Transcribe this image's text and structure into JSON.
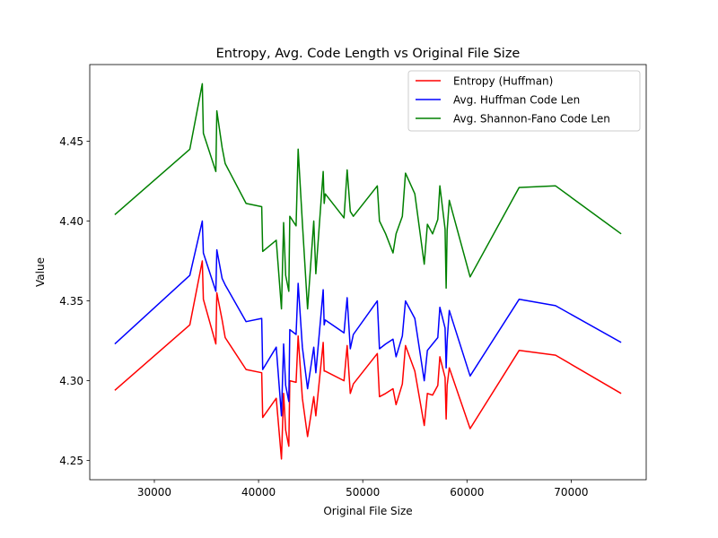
{
  "chart_data": {
    "type": "line",
    "title": "Entropy, Avg. Code Length vs Original File Size",
    "xlabel": "Original File Size",
    "ylabel": "Value",
    "xlim": [
      23800,
      77200
    ],
    "ylim": [
      4.238,
      4.498
    ],
    "xticks": [
      30000,
      40000,
      50000,
      60000,
      70000
    ],
    "xtick_labels": [
      "30000",
      "40000",
      "50000",
      "60000",
      "70000"
    ],
    "yticks": [
      4.25,
      4.3,
      4.35,
      4.4,
      4.45
    ],
    "ytick_labels": [
      "4.25",
      "4.30",
      "4.35",
      "4.40",
      "4.45"
    ],
    "grid": false,
    "legend_position": "top-right",
    "x": [
      26200,
      33400,
      34600,
      34700,
      35900,
      36000,
      36500,
      36800,
      38800,
      40300,
      40400,
      41700,
      42200,
      42400,
      42600,
      42900,
      43000,
      43600,
      43800,
      44200,
      44700,
      45300,
      45500,
      46200,
      46300,
      46400,
      48200,
      48500,
      48800,
      49100,
      51400,
      51600,
      52200,
      52900,
      53200,
      53800,
      54100,
      55000,
      55900,
      56200,
      56700,
      57200,
      57400,
      57900,
      58000,
      58100,
      58300,
      60300,
      65000,
      68500,
      74800
    ],
    "series": [
      {
        "name": "Entropy (Huffman)",
        "color": "#ff0000",
        "values": [
          4.294,
          4.335,
          4.375,
          4.351,
          4.323,
          4.355,
          4.338,
          4.327,
          4.307,
          4.305,
          4.277,
          4.289,
          4.251,
          4.292,
          4.269,
          4.259,
          4.3,
          4.299,
          4.328,
          4.289,
          4.265,
          4.29,
          4.278,
          4.324,
          4.306,
          4.306,
          4.3,
          4.322,
          4.292,
          4.298,
          4.317,
          4.29,
          4.292,
          4.295,
          4.285,
          4.298,
          4.322,
          4.306,
          4.272,
          4.292,
          4.291,
          4.297,
          4.315,
          4.302,
          4.276,
          4.297,
          4.308,
          4.27,
          4.319,
          4.316,
          4.292
        ]
      },
      {
        "name": "Avg. Huffman Code Len",
        "color": "#0000ff",
        "values": [
          4.323,
          4.366,
          4.4,
          4.38,
          4.356,
          4.382,
          4.364,
          4.36,
          4.337,
          4.339,
          4.307,
          4.321,
          4.278,
          4.323,
          4.297,
          4.287,
          4.332,
          4.329,
          4.361,
          4.321,
          4.295,
          4.321,
          4.305,
          4.357,
          4.335,
          4.338,
          4.33,
          4.352,
          4.32,
          4.329,
          4.35,
          4.32,
          4.323,
          4.326,
          4.315,
          4.328,
          4.35,
          4.339,
          4.3,
          4.319,
          4.323,
          4.327,
          4.346,
          4.333,
          4.308,
          4.325,
          4.344,
          4.303,
          4.351,
          4.347,
          4.324
        ]
      },
      {
        "name": "Avg. Shannon-Fano Code Len",
        "color": "#008000",
        "values": [
          4.404,
          4.445,
          4.486,
          4.455,
          4.431,
          4.469,
          4.446,
          4.436,
          4.411,
          4.409,
          4.381,
          4.388,
          4.345,
          4.399,
          4.366,
          4.356,
          4.403,
          4.397,
          4.445,
          4.399,
          4.345,
          4.4,
          4.367,
          4.431,
          4.411,
          4.417,
          4.402,
          4.432,
          4.406,
          4.403,
          4.422,
          4.4,
          4.392,
          4.38,
          4.392,
          4.403,
          4.43,
          4.417,
          4.373,
          4.398,
          4.392,
          4.401,
          4.422,
          4.395,
          4.358,
          4.394,
          4.413,
          4.365,
          4.421,
          4.422,
          4.392
        ]
      }
    ]
  }
}
